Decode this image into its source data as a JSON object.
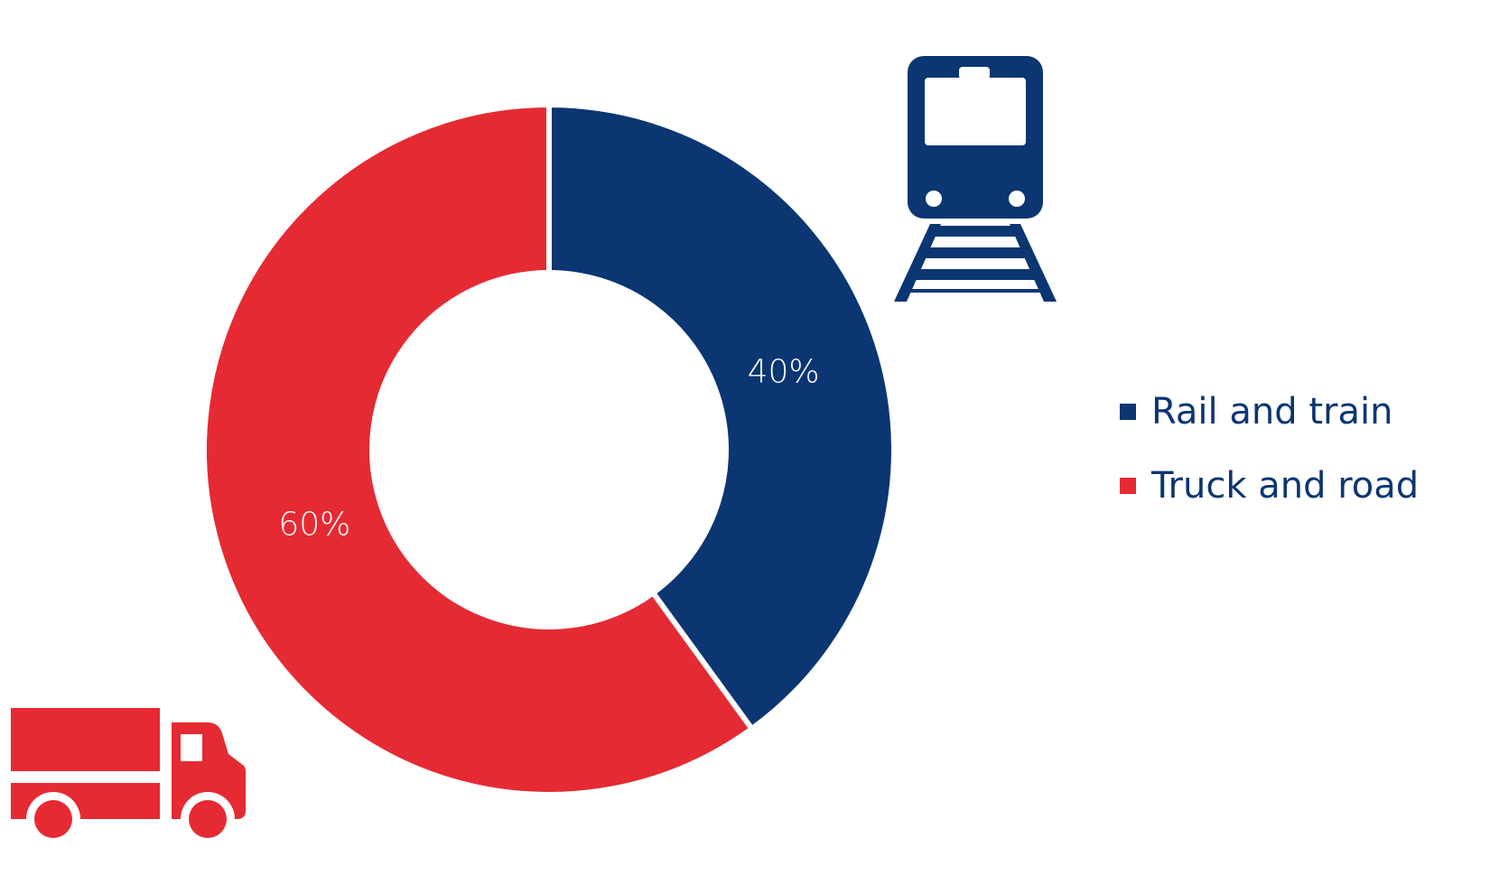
{
  "chart_data": {
    "type": "donut",
    "categories": [
      "Rail and train",
      "Truck and road"
    ],
    "values": [
      40,
      60
    ],
    "value_labels": [
      "40%",
      "60%"
    ],
    "colors": [
      "#0b3672",
      "#e52a33"
    ],
    "legend": "right"
  }
}
